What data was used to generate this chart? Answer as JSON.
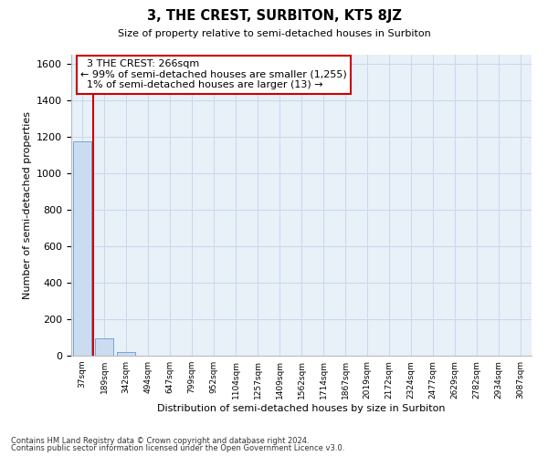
{
  "title": "3, THE CREST, SURBITON, KT5 8JZ",
  "subtitle": "Size of property relative to semi-detached houses in Surbiton",
  "xlabel": "Distribution of semi-detached houses by size in Surbiton",
  "ylabel": "Number of semi-detached properties",
  "footer1": "Contains HM Land Registry data © Crown copyright and database right 2024.",
  "footer2": "Contains public sector information licensed under the Open Government Licence v3.0.",
  "bar_color": "#ccdcf0",
  "bar_edge_color": "#6699cc",
  "grid_color": "#c8d8ec",
  "bg_color": "#e8f0f8",
  "categories": [
    "37sqm",
    "189sqm",
    "342sqm",
    "494sqm",
    "647sqm",
    "799sqm",
    "952sqm",
    "1104sqm",
    "1257sqm",
    "1409sqm",
    "1562sqm",
    "1714sqm",
    "1867sqm",
    "2019sqm",
    "2172sqm",
    "2324sqm",
    "2477sqm",
    "2629sqm",
    "2782sqm",
    "2934sqm",
    "3087sqm"
  ],
  "values": [
    1175,
    95,
    20,
    0,
    0,
    0,
    0,
    0,
    0,
    0,
    0,
    0,
    0,
    0,
    0,
    0,
    0,
    0,
    0,
    0,
    0
  ],
  "property_label": "3 THE CREST: 266sqm",
  "pct_smaller": 99,
  "count_smaller": 1255,
  "pct_larger": 1,
  "count_larger": 13,
  "red_line_x": 0.48,
  "annotation_border_color": "#cc0000",
  "ylim": [
    0,
    1650
  ],
  "yticks": [
    0,
    200,
    400,
    600,
    800,
    1000,
    1200,
    1400,
    1600
  ]
}
